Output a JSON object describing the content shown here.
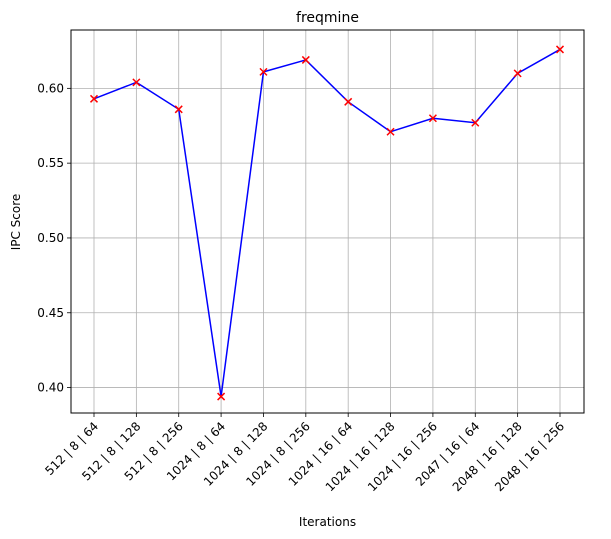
{
  "chart_data": {
    "type": "line",
    "title": "freqmine",
    "xlabel": "Iterations",
    "ylabel": "IPC Score",
    "categories": [
      "512 | 8 | 64",
      "512 | 8 | 128",
      "512 | 8 | 256",
      "1024 | 8 | 64",
      "1024 | 8 | 128",
      "1024 | 8 | 256",
      "1024 | 16 | 64",
      "1024 | 16 | 128",
      "1024 | 16 | 256",
      "2047 | 16 | 64",
      "2048 | 16 | 128",
      "2048 | 16 | 256"
    ],
    "series": [
      {
        "values": [
          0.593,
          0.604,
          0.586,
          0.394,
          0.611,
          0.619,
          0.591,
          0.571,
          0.58,
          0.577,
          0.61,
          0.626
        ],
        "line_color": "#0000ff",
        "marker": "x",
        "marker_color": "#ff0000"
      }
    ],
    "ylim": [
      0.383,
      0.639
    ],
    "yticks": [
      0.4,
      0.45,
      0.5,
      0.55,
      0.6
    ],
    "ytick_labels": [
      "0.40",
      "0.45",
      "0.50",
      "0.55",
      "0.60"
    ],
    "grid": true,
    "grid_color": "#b0b0b0"
  }
}
